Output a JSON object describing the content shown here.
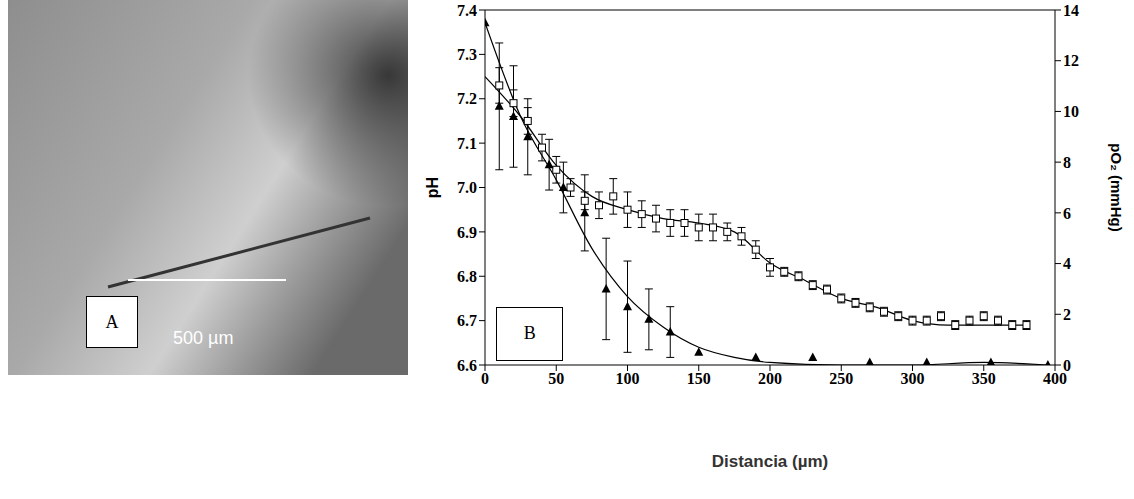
{
  "image_panel": {
    "label": "A",
    "scale_bar": "500 µm"
  },
  "chart_data": {
    "type": "scatter",
    "panel_label": "B",
    "xlabel": "Distancia (µm)",
    "ylabel": "pH",
    "y2label": "pO₂ (mmHg)",
    "xlim": [
      0,
      400
    ],
    "xticks": [
      0,
      50,
      100,
      150,
      200,
      250,
      300,
      350,
      400
    ],
    "ylim": [
      6.6,
      7.4
    ],
    "yticks": [
      6.6,
      6.7,
      6.8,
      6.9,
      {
        "value": 7,
        "label": "7.0"
      },
      7.1,
      7.2,
      7.3,
      7.4
    ],
    "y2lim": [
      0,
      14
    ],
    "y2ticks": [
      0,
      2,
      4,
      6,
      8,
      10,
      12,
      14
    ],
    "grid": false,
    "series": [
      {
        "type": "scatter",
        "axis": "y",
        "marker": "square_open",
        "color": "#000000",
        "x": [
          10,
          20,
          30,
          40,
          50,
          60,
          70,
          80,
          90,
          100,
          110,
          120,
          130,
          140,
          150,
          160,
          170,
          180,
          190,
          200,
          210,
          220,
          230,
          240,
          250,
          260,
          270,
          280,
          290,
          300,
          310,
          320,
          330,
          340,
          350,
          360,
          370,
          380
        ],
        "values": [
          7.23,
          7.19,
          7.15,
          7.09,
          7.04,
          7.0,
          6.97,
          6.96,
          6.98,
          6.95,
          6.94,
          6.93,
          6.92,
          6.92,
          6.91,
          6.91,
          6.9,
          6.89,
          6.86,
          6.82,
          6.81,
          6.8,
          6.78,
          6.77,
          6.75,
          6.74,
          6.73,
          6.72,
          6.71,
          6.7,
          6.7,
          6.71,
          6.69,
          6.7,
          6.71,
          6.7,
          6.69,
          6.69
        ],
        "error": [
          0.04,
          0.03,
          0.03,
          0.03,
          0.03,
          0.02,
          0.02,
          0.03,
          0.04,
          0.04,
          0.03,
          0.03,
          0.03,
          0.03,
          0.03,
          0.03,
          0.02,
          0.02,
          0.02,
          0.02,
          0.01,
          0.01,
          0.01,
          0.01,
          0.01,
          0.01,
          0.01,
          0.01,
          0.01,
          0.01,
          0.01,
          0.01,
          0.01,
          0.01,
          0.01,
          0.01,
          0.01,
          0.01
        ]
      },
      {
        "type": "line",
        "axis": "y",
        "line_style": "solid",
        "color": "#000000",
        "x": [
          0,
          25,
          50,
          75,
          100,
          125,
          150,
          175,
          200,
          225,
          250,
          275,
          300,
          325,
          350,
          380
        ],
        "values": [
          7.25,
          7.16,
          7.05,
          6.98,
          6.95,
          6.93,
          6.92,
          6.9,
          6.83,
          6.79,
          6.75,
          6.73,
          6.7,
          6.69,
          6.69,
          6.69
        ]
      },
      {
        "type": "scatter",
        "axis": "y2",
        "marker": "triangle",
        "color": "#000000",
        "x": [
          0,
          10,
          20,
          30,
          45,
          55,
          70,
          85,
          100,
          115,
          130,
          150,
          190,
          230,
          270,
          310,
          355,
          395
        ],
        "values": [
          13.5,
          10.2,
          9.8,
          9.0,
          7.9,
          7.0,
          6.0,
          3.0,
          2.3,
          1.8,
          1.3,
          0.5,
          0.3,
          0.3,
          0.1,
          0.1,
          0.1,
          0
        ],
        "error": [
          0,
          2.5,
          2.0,
          1.5,
          1.0,
          1.0,
          1.5,
          2.0,
          1.8,
          1.2,
          1.0,
          0,
          0,
          0,
          0,
          0,
          0,
          0
        ]
      },
      {
        "type": "line",
        "axis": "y2",
        "line_style": "solid",
        "color": "#000000",
        "x": [
          0,
          25,
          50,
          75,
          100,
          125,
          150,
          175,
          200,
          250,
          300,
          350,
          395
        ],
        "values": [
          13.5,
          9.8,
          7.3,
          4.6,
          2.7,
          1.5,
          0.7,
          0.3,
          0.1,
          0,
          0,
          0.1,
          0
        ]
      }
    ]
  }
}
